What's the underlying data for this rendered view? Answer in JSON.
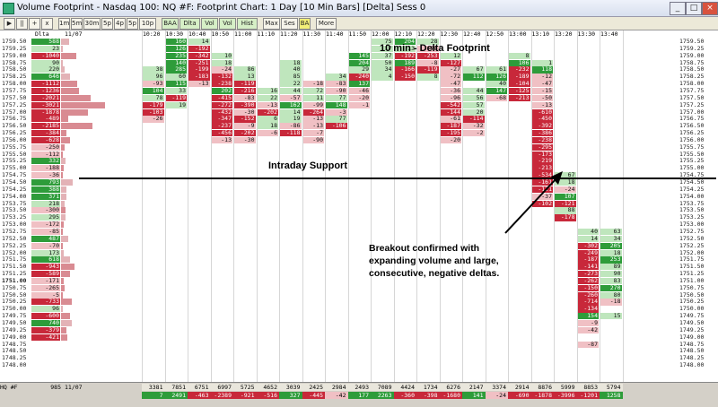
{
  "window": {
    "title": "Volume Footprint - Nasdaq 100: NQ #F: Footprint Chart: 1 Day [10 Min Bars] [Delta] Sess 0",
    "minimize": "_",
    "maximize": "□",
    "close": "×"
  },
  "toolbar": [
    "▶",
    "||",
    "+",
    "x",
    "1m",
    "5m",
    "30m",
    "5p",
    "4p",
    "5p",
    "10p",
    "BAA",
    "Dlta",
    "Vol",
    "Vol",
    "Hist",
    "Max",
    "Ses",
    "BA",
    "More"
  ],
  "chart": {
    "title": "10 min - Delta Footprint",
    "header_date": "11/07",
    "profile_header": "Dlta",
    "profile_corner": "",
    "time_labels": [
      "10:20",
      "10:30",
      "10:40",
      "10:50",
      "11:00",
      "11:10",
      "11:20",
      "11:30",
      "11:40",
      "11:50",
      "12:00",
      "12:10",
      "12:20",
      "12:30",
      "12:40",
      "12:50",
      "13:00",
      "13:10",
      "13:20",
      "13:30",
      "13:40"
    ],
    "prices": [
      "1759.50",
      "1759.25",
      "1759.00",
      "1758.75",
      "1758.50",
      "1758.25",
      "1758.00",
      "1757.75",
      "1757.50",
      "1757.25",
      "1757.00",
      "1756.75",
      "1756.50",
      "1756.25",
      "1756.00",
      "1755.75",
      "1755.50",
      "1755.25",
      "1755.00",
      "1754.75",
      "1754.50",
      "1754.25",
      "1754.00",
      "1753.75",
      "1753.50",
      "1753.25",
      "1753.00",
      "1752.75",
      "1752.50",
      "1752.25",
      "1752.00",
      "1751.75",
      "1751.50",
      "1751.25",
      "1751.00",
      "1750.75",
      "1750.50",
      "1750.25",
      "1750.00",
      "1749.75",
      "1749.50",
      "1749.25",
      "1749.00",
      "1748.75",
      "1748.50",
      "1748.25",
      "1748.00"
    ],
    "current_price": "1751.00",
    "profile_deltas": [
      "588",
      "23",
      "-1040",
      "90",
      "220",
      "646",
      "-1112",
      "-1236",
      "-2021",
      "-3021",
      "-1878",
      "-489",
      "-2185",
      "-384",
      "-628",
      "-250",
      "-112",
      "332",
      "-188",
      "-36",
      "793",
      "388",
      "371",
      "218",
      "-300",
      "295",
      "-172",
      "-85",
      "487",
      "-70",
      "173",
      "618",
      "-943",
      "-589",
      "-171",
      "-265",
      "-5",
      "-733",
      "96",
      "-600",
      "740",
      "-379",
      "-421"
    ],
    "support_label": "Intraday Support",
    "note": "Breakout confirmed with\nexpanding volume and large,\nconsecutive, negative deltas.",
    "footer_label_1": "HQ #F",
    "footer_label_2": "11/07",
    "footer_volume_1": "985",
    "footer_volume": [
      "3381",
      "7851",
      "6751",
      "6997",
      "5725",
      "4652",
      "3039",
      "2425",
      "2984",
      "2493",
      "7089",
      "4424",
      "1734",
      "6276",
      "2147",
      "3374",
      "2914",
      "8876",
      "5999",
      "8853",
      "5794"
    ],
    "footer_delta": [
      "7",
      "2491",
      "-463",
      "-2389",
      "-921",
      "-516",
      "327",
      "-445",
      "-42",
      "177",
      "2263",
      "-360",
      "-398",
      "-1680",
      "141",
      "-24",
      "-690",
      "-1878",
      "-3996",
      "-1201",
      "1258"
    ],
    "colors": {
      "pos": "#2e9c3a",
      "neg": "#c8283a",
      "poslight": "#bfe6bd",
      "neglight": "#f0c0c4"
    },
    "bars": [
      {
        "cells": [
          [
            "1758.50",
            "38"
          ],
          [
            "1758.25",
            "96"
          ],
          [
            "1758.00",
            "-93"
          ],
          [
            "1757.75",
            "104"
          ],
          [
            "1757.50",
            "78"
          ],
          [
            "1757.25",
            "-179"
          ],
          [
            "1757.00",
            "-103"
          ],
          [
            "1756.75",
            "-26"
          ]
        ]
      },
      {
        "cells": [
          [
            "1759.50",
            "160"
          ],
          [
            "1759.25",
            "126"
          ],
          [
            "1759.00",
            "235"
          ],
          [
            "1758.75",
            "140"
          ],
          [
            "1758.50",
            "285"
          ],
          [
            "1758.25",
            "60"
          ],
          [
            "1758.00",
            "115"
          ],
          [
            "1757.75",
            "33"
          ],
          [
            "1757.50",
            "-119"
          ],
          [
            "1757.25",
            "19"
          ]
        ]
      },
      {
        "cells": [
          [
            "1759.50",
            "14"
          ],
          [
            "1759.25",
            "-192"
          ],
          [
            "1759.00",
            "-342"
          ],
          [
            "1758.75",
            "-251"
          ],
          [
            "1758.50",
            "-199"
          ],
          [
            "1758.25",
            "-183"
          ],
          [
            "1758.00",
            "-13"
          ]
        ]
      },
      {
        "cells": [
          [
            "1759.00",
            "10"
          ],
          [
            "1758.75",
            "18"
          ],
          [
            "1758.50",
            "-24"
          ],
          [
            "1758.25",
            "-132"
          ],
          [
            "1758.00",
            "-238"
          ],
          [
            "1757.75",
            "202"
          ],
          [
            "1757.50",
            "-415"
          ],
          [
            "1757.25",
            "-272"
          ],
          [
            "1757.00",
            "-432"
          ],
          [
            "1756.75",
            "-347"
          ],
          [
            "1756.50",
            "-237"
          ],
          [
            "1756.25",
            "-456"
          ],
          [
            "1756.00",
            "-13"
          ]
        ]
      },
      {
        "cells": [
          [
            "1758.50",
            "86"
          ],
          [
            "1758.25",
            "13"
          ],
          [
            "1758.00",
            "-119"
          ],
          [
            "1757.75",
            "-216"
          ],
          [
            "1757.50",
            "-83"
          ],
          [
            "1757.25",
            "-390"
          ],
          [
            "1757.00",
            "-30"
          ],
          [
            "1756.75",
            "-152"
          ],
          [
            "1756.50",
            "-9"
          ],
          [
            "1756.25",
            "-202"
          ],
          [
            "1756.00",
            "-30"
          ]
        ]
      },
      {
        "cells": [
          [
            "1757.75",
            "16"
          ],
          [
            "1757.50",
            "22"
          ],
          [
            "1757.25",
            "-13"
          ],
          [
            "1757.00",
            "-202"
          ],
          [
            "1756.75",
            "6"
          ],
          [
            "1756.50",
            "18"
          ],
          [
            "1756.25",
            "-6"
          ]
        ]
      },
      {
        "cells": [
          [
            "1758.75",
            "18"
          ],
          [
            "1758.50",
            "40"
          ],
          [
            "1758.25",
            "85"
          ],
          [
            "1758.00",
            "22"
          ],
          [
            "1757.75",
            "44"
          ],
          [
            "1757.50",
            "-57"
          ],
          [
            "1757.25",
            "162"
          ],
          [
            "1757.00",
            "14"
          ],
          [
            "1756.75",
            "19"
          ],
          [
            "1756.50",
            "-86"
          ],
          [
            "1756.25",
            "-118"
          ]
        ]
      },
      {
        "cells": [
          [
            "1758.00",
            "-18"
          ],
          [
            "1757.75",
            "72"
          ],
          [
            "1757.50",
            "11"
          ],
          [
            "1757.25",
            "-99"
          ],
          [
            "1757.00",
            "-264"
          ],
          [
            "1756.75",
            "-13"
          ],
          [
            "1756.50",
            "-13"
          ],
          [
            "1756.25",
            "-7"
          ],
          [
            "1756.00",
            "-90"
          ]
        ]
      },
      {
        "cells": [
          [
            "1758.25",
            "34"
          ],
          [
            "1758.00",
            "-83"
          ],
          [
            "1757.75",
            "-90"
          ],
          [
            "1757.50",
            "77"
          ],
          [
            "1757.25",
            "148"
          ],
          [
            "1757.00",
            "-3"
          ],
          [
            "1756.75",
            "77"
          ],
          [
            "1756.50",
            "-106"
          ]
        ]
      },
      {
        "cells": [
          [
            "1759.00",
            "145"
          ],
          [
            "1758.75",
            "204"
          ],
          [
            "1758.50",
            "29"
          ],
          [
            "1758.25",
            "-240"
          ],
          [
            "1758.00",
            "137"
          ],
          [
            "1757.75",
            "-46"
          ],
          [
            "1757.50",
            "-20"
          ],
          [
            "1757.25",
            "-1"
          ]
        ]
      },
      {
        "cells": [
          [
            "1759.50",
            "75"
          ],
          [
            "1759.25",
            "17"
          ],
          [
            "1759.00",
            "37"
          ],
          [
            "1758.75",
            "50"
          ],
          [
            "1758.50",
            "34"
          ],
          [
            "1758.25",
            "4"
          ]
        ]
      },
      {
        "cells": [
          [
            "1759.50",
            "204"
          ],
          [
            "1759.25",
            "13"
          ],
          [
            "1759.00",
            "-192"
          ],
          [
            "1758.75",
            "189"
          ],
          [
            "1758.50",
            "-166"
          ],
          [
            "1758.25",
            "-150"
          ]
        ]
      },
      {
        "cells": [
          [
            "1759.50",
            "28"
          ],
          [
            "1759.25",
            "-78"
          ],
          [
            "1759.00",
            "-253"
          ],
          [
            "1758.75",
            "-8"
          ],
          [
            "1758.50",
            "-119"
          ],
          [
            "1758.25",
            "8"
          ]
        ]
      },
      {
        "cells": [
          [
            "1759.00",
            "12"
          ],
          [
            "1758.75",
            "-127"
          ],
          [
            "1758.50",
            "-27"
          ],
          [
            "1758.25",
            "-72"
          ],
          [
            "1758.00",
            "-47"
          ],
          [
            "1757.75",
            "-36"
          ],
          [
            "1757.50",
            "-96"
          ],
          [
            "1757.25",
            "-542"
          ],
          [
            "1757.00",
            "-144"
          ],
          [
            "1756.75",
            "-61"
          ],
          [
            "1756.50",
            "-187"
          ],
          [
            "1756.25",
            "-195"
          ],
          [
            "1756.00",
            "-20"
          ]
        ]
      },
      {
        "cells": [
          [
            "1758.50",
            "67"
          ],
          [
            "1758.25",
            "112"
          ],
          [
            "1757.75",
            "44"
          ],
          [
            "1757.50",
            "56"
          ],
          [
            "1757.25",
            "57"
          ],
          [
            "1757.00",
            "20"
          ],
          [
            "1756.75",
            "-114"
          ],
          [
            "1756.50",
            "-32"
          ],
          [
            "1756.25",
            "-2"
          ]
        ]
      },
      {
        "cells": [
          [
            "1758.50",
            "61"
          ],
          [
            "1758.25",
            "126"
          ],
          [
            "1758.00",
            "40"
          ],
          [
            "1757.75",
            "147"
          ],
          [
            "1757.50",
            "-68"
          ]
        ]
      },
      {
        "cells": [
          [
            "1759.00",
            "8"
          ],
          [
            "1758.75",
            "106"
          ],
          [
            "1758.50",
            "-232"
          ],
          [
            "1758.25",
            "-189"
          ],
          [
            "1758.00",
            "-104"
          ],
          [
            "1757.75",
            "-125"
          ],
          [
            "1757.50",
            "-213"
          ]
        ]
      },
      {
        "cells": [
          [
            "1758.75",
            "1"
          ],
          [
            "1758.50",
            "118"
          ],
          [
            "1758.25",
            "-12"
          ],
          [
            "1758.00",
            "-47"
          ],
          [
            "1757.75",
            "-15"
          ],
          [
            "1757.50",
            "-50"
          ],
          [
            "1757.25",
            "-13"
          ],
          [
            "1757.00",
            "-610"
          ],
          [
            "1756.75",
            "-450"
          ],
          [
            "1756.50",
            "-392"
          ],
          [
            "1756.25",
            "-386"
          ],
          [
            "1756.00",
            "-238"
          ],
          [
            "1755.75",
            "-295"
          ],
          [
            "1755.50",
            "-173"
          ],
          [
            "1755.25",
            "-219"
          ],
          [
            "1755.00",
            "-213"
          ],
          [
            "1754.75",
            "-534"
          ],
          [
            "1754.50",
            "-161"
          ],
          [
            "1754.25",
            "-121"
          ],
          [
            "1754.00",
            "-37"
          ],
          [
            "1753.75",
            "-102"
          ]
        ]
      },
      {
        "cells": [
          [
            "1754.75",
            "67"
          ],
          [
            "1754.50",
            "18"
          ],
          [
            "1754.25",
            "-24"
          ],
          [
            "1754.00",
            "107"
          ],
          [
            "1753.75",
            "-121"
          ],
          [
            "1753.50",
            "88"
          ],
          [
            "1753.25",
            "-178"
          ]
        ]
      },
      {
        "cells": [
          [
            "1752.75",
            "40"
          ],
          [
            "1752.50",
            "14"
          ],
          [
            "1752.25",
            "-302"
          ],
          [
            "1752.00",
            "-249"
          ],
          [
            "1751.75",
            "-187"
          ],
          [
            "1751.50",
            "-141"
          ],
          [
            "1751.25",
            "-273"
          ],
          [
            "1751.00",
            "-262"
          ],
          [
            "1750.75",
            "-150"
          ],
          [
            "1750.50",
            "-260"
          ],
          [
            "1750.25",
            "-714"
          ],
          [
            "1750.00",
            "-134"
          ],
          [
            "1749.75",
            "154"
          ],
          [
            "1749.50",
            "-9"
          ],
          [
            "1749.25",
            "-42"
          ],
          [
            "1748.75",
            "-87"
          ]
        ]
      },
      {
        "cells": [
          [
            "1752.75",
            "63"
          ],
          [
            "1752.50",
            "34"
          ],
          [
            "1752.25",
            "205"
          ],
          [
            "1752.00",
            "18"
          ],
          [
            "1751.75",
            "253"
          ],
          [
            "1751.50",
            "89"
          ],
          [
            "1751.25",
            "90"
          ],
          [
            "1751.00",
            "83"
          ],
          [
            "1750.75",
            "270"
          ],
          [
            "1750.50",
            "80"
          ],
          [
            "1750.25",
            "-18"
          ],
          [
            "1749.75",
            "15"
          ]
        ]
      }
    ]
  }
}
